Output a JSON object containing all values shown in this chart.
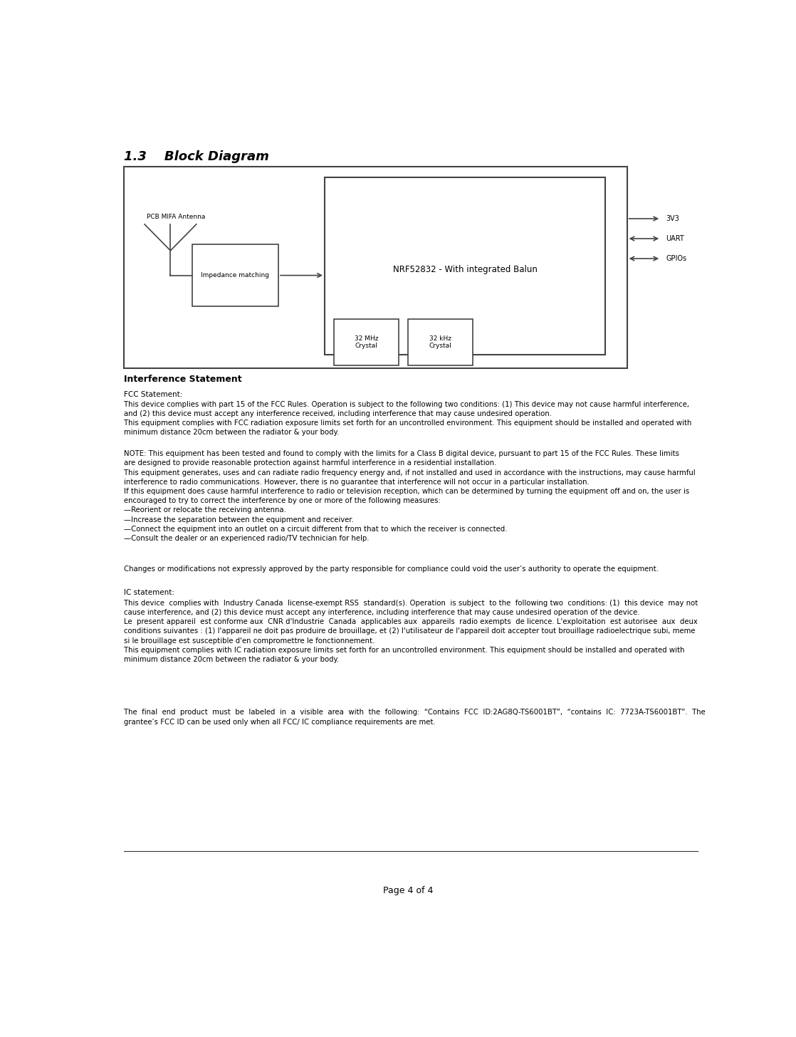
{
  "title": "1.3    Block Diagram",
  "page_footer": "Page 4 of 4",
  "bg_color": "#ffffff",
  "text_color": "#000000",
  "diagram": {
    "antenna_label": "PCB MIFA Antenna",
    "nrf_label": "NRF52832 - With integrated Balun",
    "imp_label": "Impedance matching",
    "crystal32mhz_label": "32 MHz\nCrystal",
    "crystal32khz_label": "32 kHz\nCrystal",
    "signal_3v3": "3V3",
    "signal_uart": "UART",
    "signal_gpios": "GPIOs"
  },
  "section_header": "Interference Statement",
  "fcc_title": "FCC Statement:",
  "fcc_para1": "This device complies with part 15 of the FCC Rules. Operation is subject to the following two conditions: (1) This device may not cause harmful interference,\nand (2) this device must accept any interference received, including interference that may cause undesired operation.\nThis equipment complies with FCC radiation exposure limits set forth for an uncontrolled environment. This equipment should be installed and operated with\nminimum distance 20cm between the radiator & your body.",
  "fcc_note": "NOTE: This equipment has been tested and found to comply with the limits for a Class B digital device, pursuant to part 15 of the FCC Rules. These limits\nare designed to provide reasonable protection against harmful interference in a residential installation.\nThis equipment generates, uses and can radiate radio frequency energy and, if not installed and used in accordance with the instructions, may cause harmful\ninterference to radio communications. However, there is no guarantee that interference will not occur in a particular installation.\nIf this equipment does cause harmful interference to radio or television reception, which can be determined by turning the equipment off and on, the user is\nencouraged to try to correct the interference by one or more of the following measures:\n—Reorient or relocate the receiving antenna.\n—Increase the separation between the equipment and receiver.\n—Connect the equipment into an outlet on a circuit different from that to which the receiver is connected.\n—Consult the dealer or an experienced radio/TV technician for help.",
  "fcc_changes": "Changes or modifications not expressly approved by the party responsible for compliance could void the user’s authority to operate the equipment.",
  "ic_title": "IC statement:",
  "ic_para1": "This device  complies with  Industry Canada  license-exempt RSS  standard(s). Operation  is subject  to the  following two  conditions: (1)  this device  may not\ncause interference, and (2) this device must accept any interference, including interference that may cause undesired operation of the device.\nLe  present appareil  est conforme aux  CNR d'Industrie  Canada  applicables aux  appareils  radio exempts  de licence. L'exploitation  est autorisee  aux  deux\nconditions suivantes : (1) l'appareil ne doit pas produire de brouillage, et (2) l'utilisateur de l'appareil doit accepter tout brouillage radioelectrique subi, meme\nsi le brouillage est susceptible d'en compromettre le fonctionnement.\nThis equipment complies with IC radiation exposure limits set forth for an uncontrolled environment. This equipment should be installed and operated with\nminimum distance 20cm between the radiator & your body.",
  "ic_para4": "The  final  end  product  must  be  labeled  in  a  visible  area  with  the  following:  “Contains  FCC  ID:2AG8Q-TS6001BT”,  “contains  IC:  7723A-TS6001BT”.  The\ngrantee’s FCC ID can be used only when all FCC/ IC compliance requirements are met."
}
